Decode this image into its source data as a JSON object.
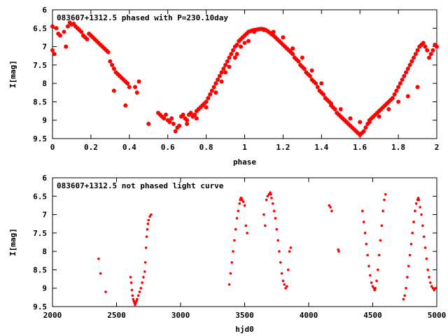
{
  "chart_data": [
    {
      "type": "scatter",
      "title": "083607+1312.5 phased with P=230.10day",
      "xlabel": "phase",
      "ylabel": "I[mag]",
      "xlim": [
        0,
        2
      ],
      "ylim": [
        6,
        9.5
      ],
      "y_inverted": true,
      "xticks": [
        0,
        0.2,
        0.4,
        0.6,
        0.8,
        1,
        1.2,
        1.4,
        1.6,
        1.8,
        2
      ],
      "xtick_labels": [
        "0",
        "0.2",
        "0.4",
        "0.6",
        "0.8",
        "1",
        "1.2",
        "1.4",
        "1.6",
        "1.8",
        "2"
      ],
      "yticks": [
        6,
        6.5,
        7,
        7.5,
        8,
        8.5,
        9,
        9.5
      ],
      "ytick_labels": [
        "6",
        "6.5",
        "7",
        "7.5",
        "8",
        "8.5",
        "9",
        "9.5"
      ],
      "grid": false,
      "marker_color": "#ff0000",
      "marker": "filled-circle",
      "marker_size": "large",
      "points": [
        [
          0.0,
          6.45
        ],
        [
          0.0,
          7.1
        ],
        [
          0.01,
          7.2
        ],
        [
          0.02,
          6.5
        ],
        [
          0.03,
          6.65
        ],
        [
          0.04,
          6.7
        ],
        [
          0.06,
          6.6
        ],
        [
          0.07,
          7.0
        ],
        [
          0.08,
          6.45
        ],
        [
          0.09,
          6.35
        ],
        [
          0.1,
          6.4
        ],
        [
          0.11,
          6.38
        ],
        [
          0.12,
          6.45
        ],
        [
          0.13,
          6.5
        ],
        [
          0.14,
          6.55
        ],
        [
          0.15,
          6.6
        ],
        [
          0.16,
          6.7
        ],
        [
          0.17,
          6.75
        ],
        [
          0.18,
          6.8
        ],
        [
          0.19,
          6.65
        ],
        [
          0.2,
          6.7
        ],
        [
          0.21,
          6.75
        ],
        [
          0.22,
          6.8
        ],
        [
          0.23,
          6.85
        ],
        [
          0.24,
          6.9
        ],
        [
          0.25,
          6.95
        ],
        [
          0.26,
          7.0
        ],
        [
          0.27,
          7.05
        ],
        [
          0.28,
          7.1
        ],
        [
          0.29,
          7.15
        ],
        [
          0.3,
          7.4
        ],
        [
          0.31,
          7.5
        ],
        [
          0.32,
          7.6
        ],
        [
          0.33,
          7.7
        ],
        [
          0.34,
          7.75
        ],
        [
          0.35,
          7.8
        ],
        [
          0.36,
          7.85
        ],
        [
          0.37,
          7.9
        ],
        [
          0.38,
          7.95
        ],
        [
          0.39,
          8.0
        ],
        [
          0.4,
          8.1
        ],
        [
          0.32,
          8.2
        ],
        [
          0.38,
          8.6
        ],
        [
          0.43,
          8.1
        ],
        [
          0.44,
          8.25
        ],
        [
          0.45,
          7.95
        ],
        [
          0.5,
          9.1
        ],
        [
          0.55,
          8.8
        ],
        [
          0.56,
          8.85
        ],
        [
          0.57,
          8.9
        ],
        [
          0.58,
          8.95
        ],
        [
          0.59,
          8.85
        ],
        [
          0.6,
          9.0
        ],
        [
          0.61,
          9.05
        ],
        [
          0.62,
          8.95
        ],
        [
          0.63,
          9.1
        ],
        [
          0.64,
          9.3
        ],
        [
          0.65,
          9.2
        ],
        [
          0.66,
          9.15
        ],
        [
          0.67,
          8.9
        ],
        [
          0.68,
          8.85
        ],
        [
          0.69,
          8.95
        ],
        [
          0.7,
          9.0
        ],
        [
          0.71,
          8.85
        ],
        [
          0.72,
          8.8
        ],
        [
          0.73,
          8.9
        ],
        [
          0.74,
          8.85
        ],
        [
          0.75,
          8.75
        ],
        [
          0.76,
          8.7
        ],
        [
          0.77,
          8.65
        ],
        [
          0.78,
          8.6
        ],
        [
          0.79,
          8.55
        ],
        [
          0.8,
          8.5
        ],
        [
          0.81,
          8.4
        ],
        [
          0.82,
          8.3
        ],
        [
          0.83,
          8.2
        ],
        [
          0.84,
          8.1
        ],
        [
          0.85,
          8.0
        ],
        [
          0.86,
          7.9
        ],
        [
          0.87,
          7.8
        ],
        [
          0.88,
          7.7
        ],
        [
          0.89,
          7.6
        ],
        [
          0.9,
          7.5
        ],
        [
          0.91,
          7.4
        ],
        [
          0.92,
          7.3
        ],
        [
          0.93,
          7.2
        ],
        [
          0.94,
          7.1
        ],
        [
          0.95,
          7.0
        ],
        [
          0.96,
          6.95
        ],
        [
          0.97,
          6.85
        ],
        [
          0.98,
          6.8
        ],
        [
          0.99,
          6.75
        ],
        [
          1.0,
          6.7
        ],
        [
          1.01,
          6.65
        ],
        [
          1.02,
          6.6
        ],
        [
          1.03,
          6.58
        ],
        [
          1.04,
          6.56
        ],
        [
          1.05,
          6.55
        ],
        [
          1.06,
          6.54
        ],
        [
          1.07,
          6.53
        ],
        [
          1.08,
          6.52
        ],
        [
          1.09,
          6.52
        ],
        [
          1.1,
          6.53
        ],
        [
          1.11,
          6.55
        ],
        [
          1.12,
          6.58
        ],
        [
          1.13,
          6.62
        ],
        [
          1.14,
          6.66
        ],
        [
          1.15,
          6.7
        ],
        [
          1.16,
          6.75
        ],
        [
          1.17,
          6.8
        ],
        [
          1.18,
          6.85
        ],
        [
          1.19,
          6.9
        ],
        [
          1.2,
          6.95
        ],
        [
          1.21,
          7.0
        ],
        [
          1.22,
          7.05
        ],
        [
          1.23,
          7.1
        ],
        [
          1.24,
          7.15
        ],
        [
          1.25,
          7.2
        ],
        [
          1.26,
          7.3
        ],
        [
          1.27,
          7.35
        ],
        [
          1.28,
          7.4
        ],
        [
          1.29,
          7.5
        ],
        [
          1.3,
          7.55
        ],
        [
          1.31,
          7.6
        ],
        [
          1.32,
          7.7
        ],
        [
          1.33,
          7.75
        ],
        [
          1.34,
          7.8
        ],
        [
          1.35,
          7.9
        ],
        [
          1.36,
          7.95
        ],
        [
          1.37,
          8.0
        ],
        [
          1.38,
          8.1
        ],
        [
          1.39,
          8.2
        ],
        [
          1.4,
          8.25
        ],
        [
          1.41,
          8.3
        ],
        [
          1.42,
          8.4
        ],
        [
          1.43,
          8.45
        ],
        [
          1.44,
          8.5
        ],
        [
          1.45,
          8.6
        ],
        [
          1.46,
          8.65
        ],
        [
          1.47,
          8.7
        ],
        [
          1.48,
          8.8
        ],
        [
          1.49,
          8.85
        ],
        [
          1.5,
          8.9
        ],
        [
          1.51,
          8.95
        ],
        [
          1.52,
          9.0
        ],
        [
          1.53,
          9.05
        ],
        [
          1.54,
          9.1
        ],
        [
          1.55,
          9.15
        ],
        [
          1.56,
          9.2
        ],
        [
          1.57,
          9.25
        ],
        [
          1.58,
          9.3
        ],
        [
          1.59,
          9.35
        ],
        [
          1.6,
          9.4
        ],
        [
          1.61,
          9.35
        ],
        [
          1.62,
          9.3
        ],
        [
          1.63,
          9.2
        ],
        [
          1.64,
          9.1
        ],
        [
          1.65,
          9.0
        ],
        [
          1.66,
          8.95
        ],
        [
          1.67,
          8.9
        ],
        [
          1.68,
          8.85
        ],
        [
          1.69,
          8.8
        ],
        [
          1.7,
          8.75
        ],
        [
          1.71,
          8.7
        ],
        [
          1.72,
          8.65
        ],
        [
          1.73,
          8.6
        ],
        [
          1.74,
          8.55
        ],
        [
          1.75,
          8.5
        ],
        [
          1.76,
          8.45
        ],
        [
          1.77,
          8.4
        ],
        [
          1.78,
          8.3
        ],
        [
          1.79,
          8.2
        ],
        [
          1.8,
          8.1
        ],
        [
          1.81,
          8.0
        ],
        [
          1.82,
          7.9
        ],
        [
          1.83,
          7.8
        ],
        [
          1.84,
          7.7
        ],
        [
          1.85,
          7.6
        ],
        [
          1.86,
          7.5
        ],
        [
          1.87,
          7.4
        ],
        [
          1.88,
          7.3
        ],
        [
          1.89,
          7.2
        ],
        [
          1.9,
          7.1
        ],
        [
          1.91,
          7.0
        ],
        [
          1.92,
          6.95
        ],
        [
          1.93,
          6.9
        ],
        [
          1.94,
          7.0
        ],
        [
          1.95,
          7.1
        ],
        [
          1.96,
          7.3
        ],
        [
          1.97,
          7.2
        ],
        [
          1.98,
          7.1
        ],
        [
          1.99,
          6.95
        ],
        [
          2.0,
          7.0
        ],
        [
          1.45,
          8.55
        ],
        [
          1.5,
          8.7
        ],
        [
          1.55,
          8.95
        ],
        [
          1.6,
          9.05
        ],
        [
          1.65,
          9.05
        ],
        [
          1.7,
          8.9
        ],
        [
          1.75,
          8.7
        ],
        [
          1.8,
          8.5
        ],
        [
          1.85,
          8.35
        ],
        [
          1.9,
          8.1
        ],
        [
          1.4,
          8.0
        ],
        [
          1.35,
          7.65
        ],
        [
          1.3,
          7.3
        ],
        [
          1.25,
          7.05
        ],
        [
          1.2,
          6.75
        ],
        [
          1.15,
          6.6
        ],
        [
          1.1,
          6.55
        ],
        [
          1.05,
          6.6
        ],
        [
          1.0,
          6.9
        ],
        [
          0.95,
          7.3
        ],
        [
          0.9,
          7.7
        ],
        [
          0.85,
          8.25
        ],
        [
          0.8,
          8.65
        ],
        [
          0.75,
          8.95
        ],
        [
          0.7,
          9.1
        ],
        [
          0.88,
          7.95
        ],
        [
          0.92,
          7.55
        ],
        [
          0.96,
          7.2
        ],
        [
          0.98,
          7.0
        ],
        [
          1.02,
          6.85
        ]
      ]
    },
    {
      "type": "scatter",
      "title": "083607+1312.5 not phased light curve",
      "xlabel": "hjd0",
      "ylabel": "I[mag]",
      "xlim": [
        2000,
        5000
      ],
      "ylim": [
        6,
        9.5
      ],
      "y_inverted": true,
      "xticks": [
        2000,
        2500,
        3000,
        3500,
        4000,
        4500,
        5000
      ],
      "xtick_labels": [
        "2000",
        "2500",
        "3000",
        "3500",
        "4000",
        "4500",
        "5000"
      ],
      "yticks": [
        6,
        6.5,
        7,
        7.5,
        8,
        8.5,
        9,
        9.5
      ],
      "ytick_labels": [
        "6",
        "6.5",
        "7",
        "7.5",
        "8",
        "8.5",
        "9",
        "9.5"
      ],
      "grid": false,
      "marker_color": "#ff0000",
      "marker": "filled-circle",
      "marker_size": "small",
      "points": [
        [
          2360,
          8.2
        ],
        [
          2375,
          8.6
        ],
        [
          2415,
          9.1
        ],
        [
          2610,
          8.7
        ],
        [
          2615,
          8.85
        ],
        [
          2620,
          9.05
        ],
        [
          2625,
          9.2
        ],
        [
          2630,
          9.3
        ],
        [
          2635,
          9.35
        ],
        [
          2640,
          9.4
        ],
        [
          2645,
          9.45
        ],
        [
          2650,
          9.4
        ],
        [
          2655,
          9.35
        ],
        [
          2660,
          9.3
        ],
        [
          2670,
          9.2
        ],
        [
          2680,
          9.1
        ],
        [
          2690,
          9.0
        ],
        [
          2700,
          8.85
        ],
        [
          2710,
          8.7
        ],
        [
          2720,
          8.55
        ],
        [
          2725,
          8.3
        ],
        [
          2730,
          7.9
        ],
        [
          2735,
          7.6
        ],
        [
          2740,
          7.4
        ],
        [
          2745,
          7.25
        ],
        [
          2750,
          7.15
        ],
        [
          2760,
          7.05
        ],
        [
          2770,
          7.0
        ],
        [
          3380,
          8.9
        ],
        [
          3390,
          8.6
        ],
        [
          3400,
          8.3
        ],
        [
          3410,
          8.0
        ],
        [
          3420,
          7.7
        ],
        [
          3430,
          7.4
        ],
        [
          3440,
          7.1
        ],
        [
          3450,
          6.9
        ],
        [
          3460,
          6.7
        ],
        [
          3465,
          6.6
        ],
        [
          3470,
          6.55
        ],
        [
          3475,
          6.55
        ],
        [
          3480,
          6.6
        ],
        [
          3490,
          6.65
        ],
        [
          3500,
          6.75
        ],
        [
          3510,
          7.3
        ],
        [
          3520,
          7.5
        ],
        [
          3650,
          7.0
        ],
        [
          3660,
          7.3
        ],
        [
          3670,
          6.6
        ],
        [
          3680,
          6.5
        ],
        [
          3690,
          6.45
        ],
        [
          3700,
          6.4
        ],
        [
          3705,
          6.45
        ],
        [
          3710,
          6.55
        ],
        [
          3720,
          6.7
        ],
        [
          3730,
          6.9
        ],
        [
          3740,
          7.1
        ],
        [
          3750,
          7.4
        ],
        [
          3760,
          7.7
        ],
        [
          3770,
          8.0
        ],
        [
          3780,
          8.3
        ],
        [
          3790,
          8.6
        ],
        [
          3800,
          8.8
        ],
        [
          3810,
          8.9
        ],
        [
          3820,
          9.0
        ],
        [
          3830,
          8.95
        ],
        [
          3840,
          8.5
        ],
        [
          3850,
          8.0
        ],
        [
          3860,
          7.9
        ],
        [
          4160,
          6.75
        ],
        [
          4170,
          6.8
        ],
        [
          4180,
          6.9
        ],
        [
          4230,
          7.95
        ],
        [
          4235,
          8.0
        ],
        [
          4420,
          6.9
        ],
        [
          4430,
          7.2
        ],
        [
          4440,
          7.5
        ],
        [
          4450,
          7.8
        ],
        [
          4460,
          8.1
        ],
        [
          4470,
          8.4
        ],
        [
          4480,
          8.65
        ],
        [
          4490,
          8.85
        ],
        [
          4500,
          8.95
        ],
        [
          4510,
          9.0
        ],
        [
          4515,
          9.05
        ],
        [
          4520,
          9.0
        ],
        [
          4530,
          8.8
        ],
        [
          4540,
          8.5
        ],
        [
          4550,
          8.1
        ],
        [
          4560,
          7.7
        ],
        [
          4570,
          7.3
        ],
        [
          4580,
          6.9
        ],
        [
          4590,
          6.6
        ],
        [
          4600,
          6.45
        ],
        [
          4740,
          9.3
        ],
        [
          4750,
          9.2
        ],
        [
          4760,
          9.0
        ],
        [
          4770,
          8.7
        ],
        [
          4780,
          8.4
        ],
        [
          4790,
          8.1
        ],
        [
          4800,
          7.8
        ],
        [
          4810,
          7.5
        ],
        [
          4820,
          7.2
        ],
        [
          4830,
          6.9
        ],
        [
          4840,
          6.7
        ],
        [
          4850,
          6.6
        ],
        [
          4855,
          6.55
        ],
        [
          4860,
          6.6
        ],
        [
          4870,
          6.8
        ],
        [
          4880,
          7.0
        ],
        [
          4890,
          7.3
        ],
        [
          4900,
          7.6
        ],
        [
          4910,
          7.9
        ],
        [
          4920,
          8.2
        ],
        [
          4930,
          8.5
        ],
        [
          4940,
          8.7
        ],
        [
          4950,
          8.85
        ],
        [
          4960,
          8.95
        ],
        [
          4970,
          9.0
        ],
        [
          4980,
          9.05
        ],
        [
          4990,
          9.0
        ]
      ]
    }
  ]
}
